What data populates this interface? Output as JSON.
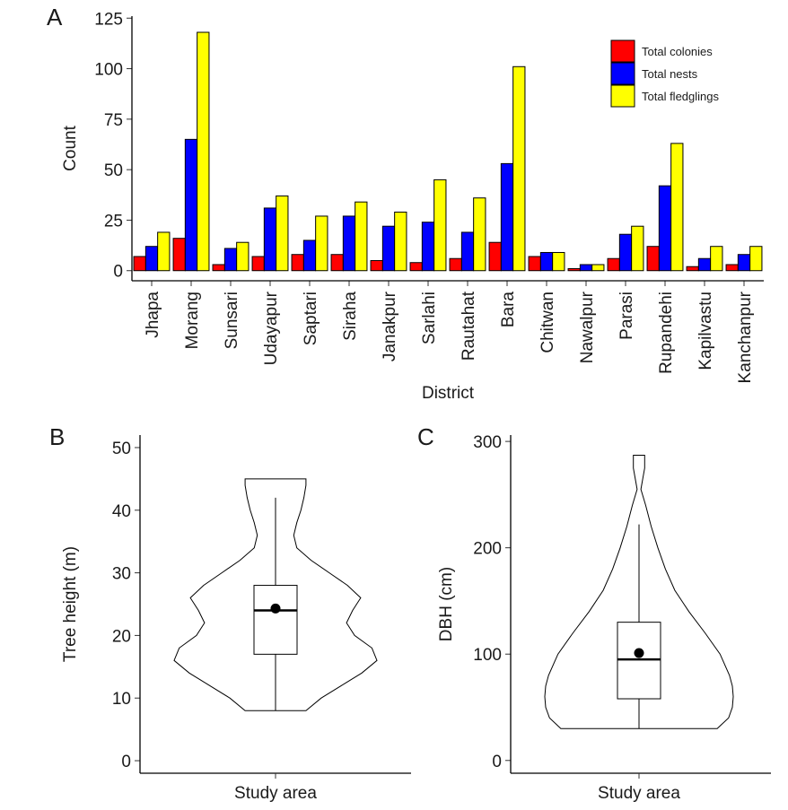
{
  "chart_data": [
    {
      "panel": "A",
      "type": "bar",
      "xlabel": "District",
      "ylabel": "Count",
      "ylim": [
        -5,
        126
      ],
      "yticks": [
        0,
        25,
        50,
        75,
        100,
        125
      ],
      "legend_position": "top-right",
      "categories": [
        "Jhapa",
        "Morang",
        "Sunsari",
        "Udayapur",
        "Saptari",
        "Siraha",
        "Janakpur",
        "Sarlahi",
        "Rautahat",
        "Bara",
        "Chitwan",
        "Nawalpur",
        "Parasi",
        "Rupandehi",
        "Kapilvastu",
        "Kanchanpur"
      ],
      "series": [
        {
          "name": "Total colonies",
          "color": "#ff0000",
          "values": [
            7,
            16,
            3,
            7,
            8,
            8,
            5,
            4,
            6,
            14,
            7,
            1,
            6,
            12,
            2,
            3
          ]
        },
        {
          "name": "Total nests",
          "color": "#0000ff",
          "values": [
            12,
            65,
            11,
            31,
            15,
            27,
            22,
            24,
            19,
            53,
            9,
            3,
            18,
            42,
            6,
            8
          ]
        },
        {
          "name": "Total fledglings",
          "color": "#ffff00",
          "values": [
            19,
            118,
            14,
            37,
            27,
            34,
            29,
            45,
            36,
            101,
            9,
            3,
            22,
            63,
            12,
            12
          ]
        }
      ]
    },
    {
      "panel": "B",
      "type": "violin",
      "xlabel": "",
      "category": "Study area",
      "ylabel": "Tree height (m)",
      "ylim": [
        -2,
        52
      ],
      "yticks": [
        0,
        10,
        20,
        30,
        40,
        50
      ],
      "min": 8,
      "max": 45,
      "whisker_low": 8,
      "whisker_high": 42,
      "q1": 17,
      "median": 24,
      "q3": 28,
      "mean": 24.3,
      "density": [
        [
          8,
          0.3
        ],
        [
          10,
          0.45
        ],
        [
          12,
          0.65
        ],
        [
          14,
          0.85
        ],
        [
          16,
          1.0
        ],
        [
          18,
          0.95
        ],
        [
          20,
          0.78
        ],
        [
          22,
          0.7
        ],
        [
          24,
          0.76
        ],
        [
          26,
          0.84
        ],
        [
          28,
          0.71
        ],
        [
          30,
          0.53
        ],
        [
          32,
          0.35
        ],
        [
          34,
          0.21
        ],
        [
          36,
          0.18
        ],
        [
          38,
          0.21
        ],
        [
          40,
          0.25
        ],
        [
          42,
          0.28
        ],
        [
          44,
          0.3
        ],
        [
          45,
          0.3
        ]
      ]
    },
    {
      "panel": "C",
      "type": "violin",
      "xlabel": "",
      "category": "Study area",
      "ylabel": "DBH (cm)",
      "ylim": [
        -12,
        306
      ],
      "yticks": [
        0,
        100,
        200,
        300
      ],
      "min": 30,
      "max": 287,
      "whisker_low": 30,
      "whisker_high": 222,
      "q1": 58,
      "median": 95,
      "q3": 130,
      "mean": 101,
      "density": [
        [
          30,
          0.83
        ],
        [
          40,
          0.95
        ],
        [
          50,
          0.99
        ],
        [
          60,
          1.0
        ],
        [
          70,
          0.99
        ],
        [
          80,
          0.96
        ],
        [
          100,
          0.86
        ],
        [
          120,
          0.7
        ],
        [
          140,
          0.53
        ],
        [
          160,
          0.38
        ],
        [
          180,
          0.28
        ],
        [
          200,
          0.2
        ],
        [
          220,
          0.13
        ],
        [
          240,
          0.07
        ],
        [
          255,
          0.02
        ],
        [
          265,
          0.04
        ],
        [
          275,
          0.06
        ],
        [
          287,
          0.06
        ]
      ]
    }
  ],
  "panels": {
    "a": {
      "letter": "A"
    },
    "b": {
      "letter": "B"
    },
    "c": {
      "letter": "C"
    }
  }
}
